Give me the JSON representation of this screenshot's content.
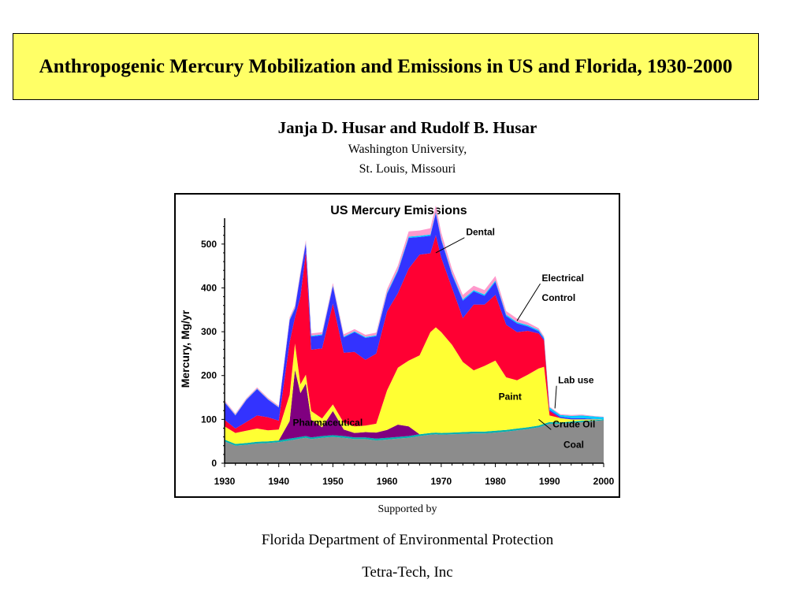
{
  "header": {
    "title": "Anthropogenic Mercury Mobilization and Emissions in US and Florida, 1930-2000"
  },
  "authors": {
    "names": "Janja D. Husar and Rudolf B. Husar",
    "affiliation_line1": "Washington University,",
    "affiliation_line2": "St. Louis, Missouri"
  },
  "support": {
    "label": "Supported by",
    "sponsor1": "Florida Department of Environmental Protection",
    "sponsor2": "Tetra-Tech, Inc"
  },
  "chart_data": {
    "type": "area",
    "stacked": true,
    "title": "US Mercury Emissions",
    "xlabel": "",
    "ylabel": "Mercury, Mg/yr",
    "xlim": [
      1930,
      2000
    ],
    "ylim": [
      0,
      550
    ],
    "x_ticks": [
      1930,
      1940,
      1950,
      1960,
      1970,
      1980,
      1990,
      2000
    ],
    "y_ticks": [
      0,
      100,
      200,
      300,
      400,
      500
    ],
    "x": [
      1930,
      1932,
      1934,
      1936,
      1938,
      1940,
      1942,
      1943,
      1944,
      1945,
      1946,
      1948,
      1950,
      1952,
      1954,
      1956,
      1958,
      1960,
      1962,
      1964,
      1966,
      1968,
      1969,
      1970,
      1972,
      1974,
      1976,
      1978,
      1980,
      1982,
      1984,
      1986,
      1988,
      1989,
      1990,
      1992,
      1994,
      1996,
      1998,
      2000
    ],
    "series": [
      {
        "name": "Coal",
        "color": "#8c8c8c",
        "values": [
          50,
          40,
          42,
          45,
          46,
          48,
          52,
          54,
          56,
          58,
          55,
          58,
          60,
          58,
          55,
          55,
          52,
          54,
          56,
          58,
          62,
          65,
          66,
          65,
          66,
          67,
          68,
          68,
          70,
          72,
          75,
          78,
          82,
          86,
          90,
          90,
          92,
          94,
          96,
          98
        ]
      },
      {
        "name": "Crude Oil",
        "color": "#00b0b0",
        "values": [
          4,
          4,
          4,
          4,
          4,
          4,
          4,
          4,
          4,
          4,
          4,
          4,
          4,
          4,
          4,
          4,
          4,
          4,
          4,
          4,
          4,
          4,
          4,
          4,
          4,
          4,
          4,
          4,
          4,
          4,
          4,
          4,
          4,
          4,
          4,
          3,
          3,
          3,
          2,
          2
        ]
      },
      {
        "name": "Pharmaceutical",
        "color": "#800080",
        "values": [
          0,
          0,
          0,
          0,
          0,
          0,
          40,
          155,
          100,
          120,
          40,
          20,
          55,
          15,
          10,
          12,
          14,
          18,
          28,
          22,
          0,
          0,
          0,
          0,
          0,
          0,
          0,
          0,
          0,
          0,
          0,
          0,
          0,
          0,
          0,
          0,
          0,
          0,
          0,
          0
        ]
      },
      {
        "name": "Paint",
        "color": "#ffff33",
        "values": [
          30,
          25,
          28,
          30,
          25,
          25,
          60,
          60,
          20,
          20,
          20,
          20,
          15,
          15,
          15,
          15,
          20,
          90,
          130,
          150,
          180,
          230,
          240,
          230,
          200,
          160,
          140,
          150,
          160,
          120,
          110,
          120,
          130,
          130,
          15,
          10,
          5,
          3,
          2,
          0
        ]
      },
      {
        "name": "Control",
        "color": "#ff0033",
        "values": [
          15,
          10,
          20,
          30,
          30,
          20,
          120,
          60,
          200,
          280,
          140,
          160,
          230,
          160,
          170,
          150,
          160,
          180,
          170,
          210,
          230,
          180,
          210,
          170,
          130,
          100,
          150,
          140,
          150,
          120,
          110,
          100,
          80,
          60,
          10,
          0,
          0,
          0,
          0,
          0
        ]
      },
      {
        "name": "Electrical",
        "color": "#3333ff",
        "values": [
          40,
          30,
          50,
          60,
          40,
          30,
          50,
          20,
          50,
          20,
          30,
          30,
          40,
          35,
          45,
          50,
          40,
          40,
          50,
          70,
          40,
          40,
          50,
          40,
          30,
          40,
          30,
          20,
          30,
          20,
          20,
          10,
          5,
          3,
          3,
          3,
          3,
          3,
          1,
          0
        ]
      },
      {
        "name": "Lab use",
        "color": "#00ccff",
        "values": [
          1,
          1,
          1,
          1,
          1,
          1,
          2,
          2,
          2,
          2,
          2,
          2,
          2,
          2,
          2,
          2,
          2,
          3,
          3,
          3,
          3,
          3,
          3,
          3,
          3,
          3,
          3,
          3,
          3,
          3,
          3,
          3,
          3,
          3,
          5,
          4,
          5,
          6,
          6,
          5
        ]
      },
      {
        "name": "Dental",
        "color": "#ff99cc",
        "values": [
          3,
          3,
          3,
          3,
          3,
          3,
          5,
          5,
          5,
          5,
          5,
          5,
          5,
          5,
          5,
          5,
          6,
          8,
          10,
          12,
          12,
          14,
          15,
          14,
          10,
          10,
          10,
          10,
          10,
          8,
          8,
          6,
          4,
          3,
          2,
          2,
          2,
          2,
          1,
          1
        ]
      }
    ],
    "annotations": [
      {
        "label": "Dental",
        "target": "Dental"
      },
      {
        "label": "Electrical",
        "target": "Electrical"
      },
      {
        "label": "Control",
        "target": "Control"
      },
      {
        "label": "Lab use",
        "target": "Lab use"
      },
      {
        "label": "Paint",
        "target": "Paint"
      },
      {
        "label": "Pharmaceutical",
        "target": "Pharmaceutical"
      },
      {
        "label": "Crude Oil",
        "target": "Crude Oil"
      },
      {
        "label": "Coal",
        "target": "Coal"
      }
    ],
    "grid": false,
    "legend": "none"
  }
}
